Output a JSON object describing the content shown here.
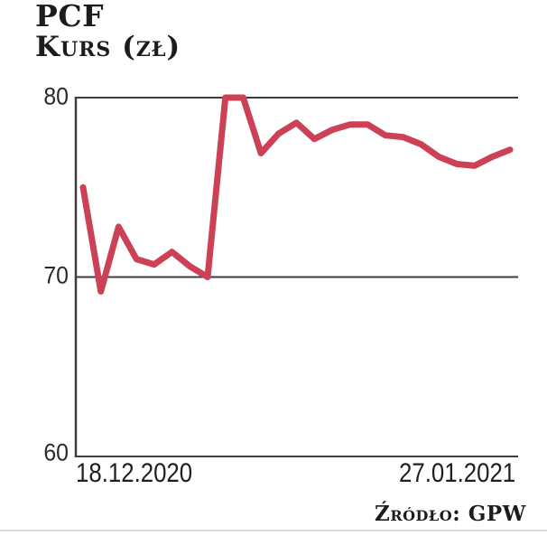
{
  "header": {
    "title": "PCF",
    "subtitle": "Kurs (zł)"
  },
  "y_axis": {
    "ticks": [
      "80",
      "70",
      "60"
    ]
  },
  "x_axis": {
    "start_label": "18.12.2020",
    "end_label": "27.01.2021"
  },
  "footer": {
    "source": "Źródło: GPW"
  },
  "colors": {
    "line": "#cc4156",
    "axis": "#3d3d3d",
    "text": "#1c1c1a",
    "divider": "#ddd7da"
  },
  "chart_data": {
    "type": "line",
    "title": "PCF",
    "ylabel": "Kurs (zł)",
    "ylim": [
      60,
      80
    ],
    "yticks": [
      80,
      70,
      60
    ],
    "grid": "horizontal lines at y ticks, left axis spine, no right spine",
    "legend": "none",
    "source": "Źródło: GPW",
    "line_color": "#cc4156",
    "x_tick_labels_visible": [
      "18.12.2020",
      "27.01.2021"
    ],
    "x": [
      "18.12.2020",
      "21.12.2020",
      "22.12.2020",
      "23.12.2020",
      "28.12.2020",
      "29.12.2020",
      "30.12.2020",
      "31.12.2020",
      "04.01.2021",
      "05.01.2021",
      "07.01.2021",
      "08.01.2021",
      "11.01.2021",
      "12.01.2021",
      "13.01.2021",
      "14.01.2021",
      "15.01.2021",
      "18.01.2021",
      "19.01.2021",
      "20.01.2021",
      "21.01.2021",
      "22.01.2021",
      "25.01.2021",
      "26.01.2021",
      "27.01.2021"
    ],
    "values": [
      75.0,
      69.2,
      72.8,
      71.0,
      70.7,
      71.4,
      70.6,
      70.0,
      80.0,
      80.0,
      76.9,
      78.0,
      78.6,
      77.7,
      78.2,
      78.5,
      78.5,
      77.9,
      77.8,
      77.4,
      76.7,
      76.3,
      76.2,
      76.7,
      77.1
    ]
  }
}
